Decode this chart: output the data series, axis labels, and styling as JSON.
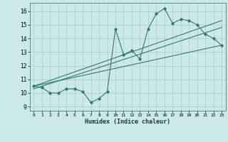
{
  "title": "",
  "xlabel": "Humidex (Indice chaleur)",
  "ylabel": "",
  "bg_color": "#cce8e8",
  "line_color": "#2d7d6e",
  "xlim": [
    -0.5,
    23.5
  ],
  "ylim": [
    8.7,
    16.6
  ],
  "xticks": [
    0,
    1,
    2,
    3,
    4,
    5,
    6,
    7,
    8,
    9,
    10,
    11,
    12,
    13,
    14,
    15,
    16,
    17,
    18,
    19,
    20,
    21,
    22,
    23
  ],
  "yticks": [
    9,
    10,
    11,
    12,
    13,
    14,
    15,
    16
  ],
  "main_line_x": [
    0,
    1,
    2,
    3,
    4,
    5,
    6,
    7,
    8,
    9,
    10,
    11,
    12,
    13,
    14,
    15,
    16,
    17,
    18,
    19,
    20,
    21,
    22,
    23
  ],
  "main_line_y": [
    10.5,
    10.4,
    10.0,
    10.0,
    10.3,
    10.3,
    10.1,
    9.3,
    9.6,
    10.1,
    14.7,
    12.8,
    13.1,
    12.5,
    14.7,
    15.8,
    16.2,
    15.1,
    15.4,
    15.3,
    15.0,
    14.3,
    14.0,
    13.5
  ],
  "reg_line1_x": [
    0,
    23
  ],
  "reg_line1_y": [
    10.5,
    15.3
  ],
  "reg_line2_x": [
    0,
    23
  ],
  "reg_line2_y": [
    10.5,
    13.5
  ],
  "reg_line3_x": [
    0,
    23
  ],
  "reg_line3_y": [
    10.3,
    14.8
  ],
  "grid_color": "#aacccc",
  "spine_color": "#5a9090"
}
